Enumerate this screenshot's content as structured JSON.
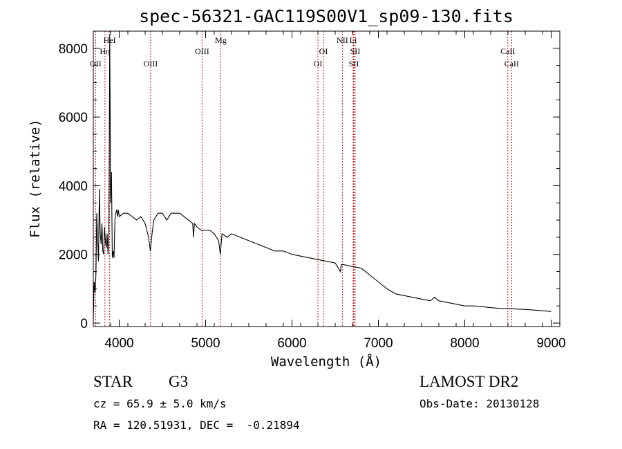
{
  "chart_data": {
    "type": "line",
    "title": "spec-56321-GAC119S00V1_sp09-130.fits",
    "xlabel": "Wavelength (Å)",
    "ylabel": "Flux (relative)",
    "xlim": [
      3700,
      9100
    ],
    "ylim": [
      -100,
      8500
    ],
    "xticks": [
      4000,
      5000,
      6000,
      7000,
      8000,
      9000
    ],
    "yticks": [
      0,
      2000,
      4000,
      6000,
      8000
    ],
    "grid": false,
    "spectral_lines": [
      {
        "name": "OII",
        "wavelength": 3727
      },
      {
        "name": "Hη",
        "wavelength": 3835
      },
      {
        "name": "HeI",
        "wavelength": 3889
      },
      {
        "name": "OIII",
        "wavelength": 4363
      },
      {
        "name": "OIII",
        "wavelength": 4959
      },
      {
        "name": "Mg",
        "wavelength": 5175
      },
      {
        "name": "OI",
        "wavelength": 6300
      },
      {
        "name": "OI",
        "wavelength": 6364
      },
      {
        "name": "NII",
        "wavelength": 6583
      },
      {
        "name": "SII",
        "wavelength": 6716
      },
      {
        "name": "SII",
        "wavelength": 6731
      },
      {
        "name": "Li",
        "wavelength": 6708
      },
      {
        "name": "CaII",
        "wavelength": 8542
      },
      {
        "name": "CaII",
        "wavelength": 8498
      }
    ],
    "series": [
      {
        "x": [
          3700,
          3710,
          3720,
          3730,
          3740,
          3750,
          3760,
          3770,
          3780,
          3790,
          3800,
          3810,
          3820,
          3830,
          3840,
          3850,
          3860,
          3870,
          3880,
          3890,
          3900,
          3910,
          3920,
          3930,
          3940,
          3950,
          3960,
          3970,
          3980,
          3990,
          4000,
          4050,
          4100,
          4150,
          4200,
          4250,
          4300,
          4340,
          4360,
          4380,
          4400,
          4450,
          4500,
          4550,
          4600,
          4650,
          4700,
          4750,
          4800,
          4850,
          4860,
          4870,
          4900,
          4950,
          5000,
          5050,
          5100,
          5150,
          5170,
          5180,
          5190,
          5250,
          5300,
          5400,
          5500,
          5600,
          5700,
          5800,
          5900,
          6000,
          6100,
          6200,
          6300,
          6400,
          6500,
          6560,
          6570,
          6600,
          6700,
          6800,
          6850,
          6900,
          7000,
          7100,
          7200,
          7300,
          7400,
          7500,
          7600,
          7650,
          7700,
          7800,
          7900,
          8000,
          8100,
          8200,
          8300,
          8400,
          8500,
          8600,
          8700,
          8800,
          8900,
          9000
        ],
        "y": [
          100,
          1200,
          900,
          1400,
          3200,
          2400,
          1800,
          3900,
          2600,
          2300,
          2900,
          2100,
          2000,
          2800,
          2400,
          2200,
          2600,
          2000,
          2500,
          8400,
          3500,
          4400,
          1900,
          2100,
          1900,
          3000,
          3200,
          3300,
          3100,
          3300,
          3100,
          3200,
          3200,
          3100,
          3000,
          3100,
          2900,
          2500,
          2100,
          2600,
          3000,
          3200,
          3200,
          3000,
          3200,
          3200,
          3200,
          3100,
          3000,
          2900,
          2500,
          2900,
          2800,
          2700,
          2700,
          2700,
          2600,
          2400,
          2000,
          2300,
          2600,
          2500,
          2600,
          2500,
          2400,
          2300,
          2200,
          2100,
          2100,
          2000,
          1950,
          1900,
          1850,
          1800,
          1750,
          1500,
          1700,
          1700,
          1650,
          1600,
          1500,
          1400,
          1200,
          1000,
          850,
          800,
          750,
          700,
          650,
          750,
          650,
          600,
          550,
          500,
          500,
          480,
          450,
          430,
          420,
          410,
          400,
          380,
          360,
          340
        ]
      }
    ]
  },
  "info": {
    "object_type": "STAR",
    "subclass": "G3",
    "survey": "LAMOST DR2",
    "cz": "cz = 65.9 ± 5.0 km/s",
    "obs_date": "Obs-Date: 20130128",
    "coords": "RA = 120.51931, DEC =  -0.21894"
  }
}
